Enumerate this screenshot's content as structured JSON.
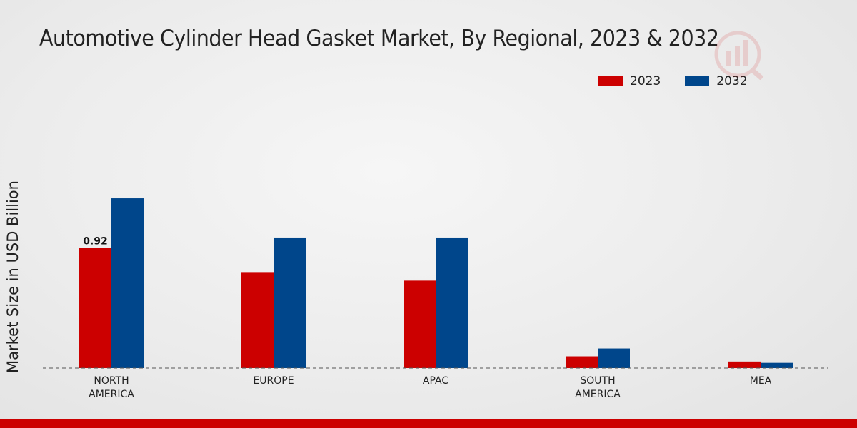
{
  "title": "Automotive Cylinder Head Gasket Market, By Regional, 2023 & 2032",
  "chart_data": {
    "type": "bar",
    "title": "Automotive Cylinder Head Gasket Market, By Regional, 2023 & 2032",
    "xlabel": "",
    "ylabel": "Market Size in USD Billion",
    "categories": [
      "NORTH\nAMERICA",
      "EUROPE",
      "APAC",
      "SOUTH\nAMERICA",
      "MEA"
    ],
    "series": [
      {
        "name": "2023",
        "color": "#cc0000",
        "values": [
          0.92,
          0.73,
          0.67,
          0.09,
          0.05
        ]
      },
      {
        "name": "2032",
        "color": "#00468b",
        "values": [
          1.3,
          1.0,
          1.0,
          0.15,
          0.04
        ]
      }
    ],
    "data_labels": [
      {
        "series": 0,
        "index": 0,
        "text": "0.92"
      }
    ],
    "ylim": [
      0,
      2.3
    ],
    "grid": false,
    "legend_position": "top-right"
  }
}
